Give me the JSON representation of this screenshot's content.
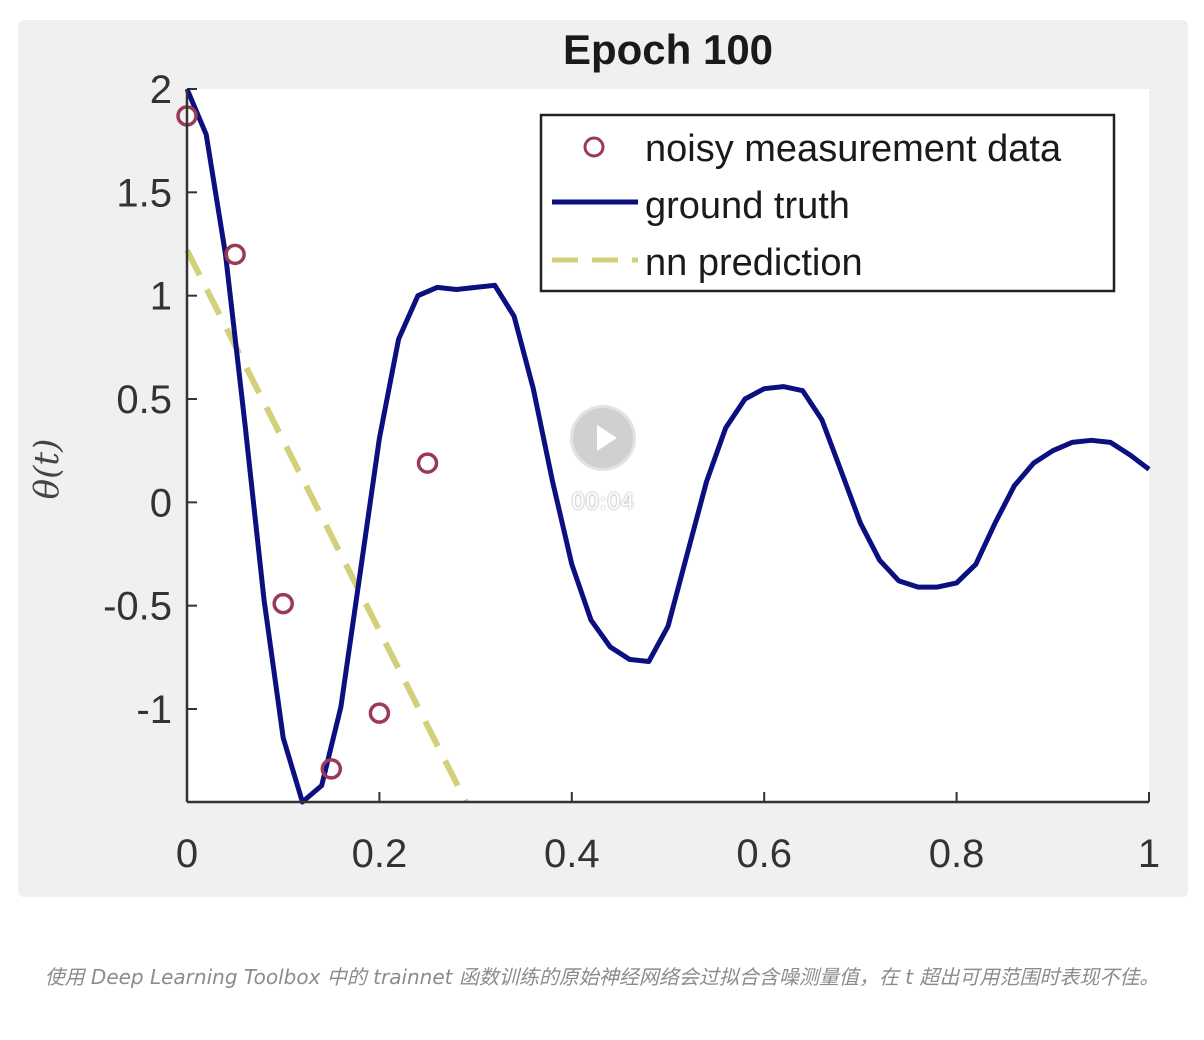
{
  "chart_data": {
    "type": "line",
    "title": "Epoch 100",
    "ylabel": "θ(t)",
    "xlabel": "",
    "xlim": [
      0,
      1
    ],
    "ylim": [
      -1.45,
      2
    ],
    "xticks": [
      "0",
      "0.2",
      "0.4",
      "0.6",
      "0.8",
      "1"
    ],
    "xtick_values": [
      0,
      0.2,
      0.4,
      0.6,
      0.8,
      1
    ],
    "yticks": [
      "2",
      "1.5",
      "1",
      "0.5",
      "0",
      "-0.5",
      "-1"
    ],
    "ytick_values": [
      2,
      1.5,
      1,
      0.5,
      0,
      -0.5,
      -1
    ],
    "grid": false,
    "legend_position": "top-right",
    "series": [
      {
        "name": "noisy measurement data",
        "kind": "scatter",
        "color": "#9b3a55",
        "x": [
          0,
          0.05,
          0.1,
          0.15,
          0.2,
          0.25
        ],
        "y": [
          1.87,
          1.2,
          -0.49,
          -1.29,
          -1.02,
          0.19
        ]
      },
      {
        "name": "ground truth",
        "kind": "line",
        "color": "#0b0f80",
        "x": [
          0,
          0.02,
          0.04,
          0.06,
          0.08,
          0.1,
          0.12,
          0.14,
          0.16,
          0.18,
          0.2,
          0.22,
          0.24,
          0.26,
          0.28,
          0.3,
          0.32,
          0.34,
          0.36,
          0.38,
          0.4,
          0.42,
          0.44,
          0.46,
          0.48,
          0.5,
          0.52,
          0.54,
          0.56,
          0.58,
          0.6,
          0.62,
          0.64,
          0.66,
          0.68,
          0.7,
          0.72,
          0.74,
          0.76,
          0.78,
          0.8,
          0.82,
          0.84,
          0.86,
          0.88,
          0.9,
          0.92,
          0.94,
          0.96,
          0.98,
          1.0
        ],
        "y": [
          2.0,
          1.78,
          1.2,
          0.39,
          -0.47,
          -1.14,
          -1.45,
          -1.37,
          -0.99,
          -0.34,
          0.31,
          0.79,
          1.0,
          1.04,
          1.03,
          1.04,
          1.05,
          0.9,
          0.55,
          0.1,
          -0.3,
          -0.57,
          -0.7,
          -0.76,
          -0.77,
          -0.6,
          -0.25,
          0.1,
          0.36,
          0.5,
          0.55,
          0.56,
          0.54,
          0.4,
          0.15,
          -0.1,
          -0.28,
          -0.38,
          -0.41,
          -0.41,
          -0.39,
          -0.3,
          -0.1,
          0.08,
          0.19,
          0.25,
          0.29,
          0.3,
          0.29,
          0.23,
          0.16
        ]
      },
      {
        "name": "nn prediction",
        "kind": "line",
        "dash": true,
        "color": "#d3cf7a",
        "x": [
          0,
          0.29
        ],
        "y": [
          1.22,
          -1.45
        ]
      }
    ]
  },
  "video": {
    "play_icon": "play-icon",
    "time": "00:04"
  },
  "caption": {
    "text": "使用 Deep Learning Toolbox 中的 trainnet 函数训练的原始神经网络会过拟合含噪测量值，在 t 超出可用范围时表现不佳。"
  }
}
